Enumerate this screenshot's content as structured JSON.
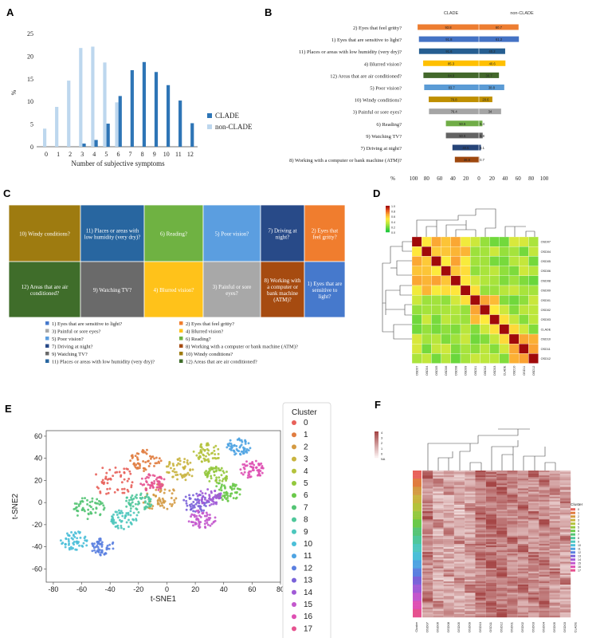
{
  "panel_labels": [
    "A",
    "B",
    "C",
    "D",
    "E",
    "F"
  ],
  "chart_data": [
    {
      "id": "A",
      "type": "bar",
      "xlabel": "Number of subjective symptoms",
      "ylabel": "%",
      "ylim": [
        0,
        25
      ],
      "yticks": [
        0,
        5,
        10,
        15,
        20,
        25
      ],
      "categories": [
        "0",
        "1",
        "2",
        "3",
        "4",
        "5",
        "6",
        "7",
        "8",
        "9",
        "10",
        "11",
        "12"
      ],
      "series": [
        {
          "name": "CLADE",
          "color": "#2e75b6",
          "values": [
            0,
            0,
            0,
            0.7,
            1.5,
            5.1,
            11.2,
            16.9,
            18.7,
            16.5,
            13.6,
            10.2,
            5.2
          ]
        },
        {
          "name": "non-CLADE",
          "color": "#bdd7ee",
          "values": [
            4.0,
            8.8,
            14.6,
            21.8,
            22.1,
            18.6,
            9.8,
            0,
            0,
            0,
            0,
            0,
            0
          ]
        }
      ],
      "legend": "right"
    },
    {
      "id": "B",
      "type": "bar",
      "orientation": "horizontal-diverging",
      "group_labels": [
        "CLADE",
        "non-CLADE"
      ],
      "axis_prefix": "%",
      "xticks": [
        "100",
        "80",
        "60",
        "40",
        "20",
        "0",
        "20",
        "40",
        "60",
        "80",
        "100"
      ],
      "xlim": [
        -100,
        100
      ],
      "categories": [
        "2) Eyes that feel gritty?",
        "1) Eyes that are sensitive to light?",
        "11) Places or areas with low humidity (very dry)?",
        "4) Blurred vision?",
        "12) Areas that are air conditioned?",
        "5) Poor vision?",
        "10) Windy conditions?",
        "3) Painful or sore eyes?",
        "6) Reading?",
        "9) Watching TV?",
        "7) Driving at night?",
        "8) Working with a computer or bank machine (ATM)?"
      ],
      "clade": [
        93.8,
        91.8,
        91.6,
        85.3,
        84.9,
        83.7,
        76.8,
        76.4,
        50.5,
        50.5,
        40.5,
        36.8
      ],
      "nonclade": [
        60.7,
        61.2,
        40.2,
        40.6,
        30.7,
        38.8,
        20.6,
        34.0,
        5.4,
        5.8,
        3.1,
        0.7
      ],
      "value_labels_clade": [
        "93.8",
        "91.8",
        "91.6",
        "85.3",
        "84.9",
        "83.7",
        "76.8",
        "76.4",
        "50.5",
        "50.5",
        "40.5",
        "36.8"
      ],
      "value_labels_nonclade": [
        "60.7",
        "61.2",
        "40.2",
        "40.6",
        "30.7",
        "38.8",
        "20.6",
        "34",
        "5.4",
        "5.8",
        "3.1",
        "0.7"
      ],
      "colors": [
        "#ed7d31",
        "#4472c4",
        "#255e91",
        "#ffc000",
        "#43682b",
        "#5b9bd5",
        "#bf8f00",
        "#a5a5a5",
        "#70ad47",
        "#636363",
        "#264478",
        "#9e480e"
      ]
    },
    {
      "id": "C",
      "type": "treemap",
      "tiles": [
        {
          "label": "10) Windy conditions?",
          "color": "#9e7b10"
        },
        {
          "label": "11) Places or areas with low humidity (very dry)?",
          "color": "#2866a0"
        },
        {
          "label": "6) Reading?",
          "color": "#6fb242"
        },
        {
          "label": "5) Poor vision?",
          "color": "#5b9ee0"
        },
        {
          "label": "7) Driving at night?",
          "color": "#284a88"
        },
        {
          "label": "2) Eyes that feel gritty?",
          "color": "#f07d2e"
        },
        {
          "label": "12) Areas that are air conditioned?",
          "color": "#3f6d2a"
        },
        {
          "label": "9) Watching TV?",
          "color": "#6a6a6a"
        },
        {
          "label": "4) Blurred vision?",
          "color": "#ffc21a"
        },
        {
          "label": "3) Painful or sore eyes?",
          "color": "#a8a8a8"
        },
        {
          "label": "8) Working with a computer or bank machine (ATM)?",
          "color": "#a64b10"
        },
        {
          "label": "1) Eyes that are sensitive to light?",
          "color": "#4679cc"
        }
      ],
      "legend": [
        {
          "label": "1) Eyes that are sensitive to light?",
          "color": "#4679cc"
        },
        {
          "label": "2) Eyes that feel gritty?",
          "color": "#f07d2e"
        },
        {
          "label": "3) Painful or sore eyes?",
          "color": "#a8a8a8"
        },
        {
          "label": "4) Blurred vision?",
          "color": "#ffc21a"
        },
        {
          "label": "5) Poor vision?",
          "color": "#5b9ee0"
        },
        {
          "label": "6) Reading?",
          "color": "#6fb242"
        },
        {
          "label": "7) Driving at night?",
          "color": "#284a88"
        },
        {
          "label": "8) Working with a computer or bank machine (ATM)?",
          "color": "#a64b10"
        },
        {
          "label": "9) Watching  TV?",
          "color": "#6a6a6a"
        },
        {
          "label": "10) Windy conditions?",
          "color": "#9e7b10"
        },
        {
          "label": "11) Places or areas with low humidity (very dry)?",
          "color": "#2866a0"
        },
        {
          "label": "12) Areas that are air conditioned?",
          "color": "#3f6d2a"
        }
      ]
    },
    {
      "id": "D",
      "type": "heatmap",
      "labels": [
        "OSD07",
        "OSD04",
        "OSD05",
        "OSD06",
        "OSD08",
        "OSD09",
        "OSD01",
        "OSD02",
        "OSD03",
        "CLADE",
        "OSD10",
        "OSD11",
        "OSD12"
      ],
      "colorbar_ticks": [
        "1.0",
        "0.8",
        "0.6",
        "0.4",
        "0.2",
        "0.0"
      ],
      "colorscale": "green-yellow-orange-red"
    },
    {
      "id": "E",
      "type": "scatter",
      "xlabel": "t-SNE1",
      "ylabel": "t-SNE2",
      "xlim": [
        -85,
        80
      ],
      "ylim": [
        -72,
        65
      ],
      "xticks": [
        "-80",
        "-60",
        "-40",
        "-20",
        "0",
        "20",
        "40",
        "60",
        "80"
      ],
      "yticks": [
        "60",
        "40",
        "20",
        "0",
        "-20",
        "-40",
        "-60"
      ],
      "legend_title": "Cluster",
      "clusters": [
        "0",
        "1",
        "2",
        "3",
        "4",
        "5",
        "6",
        "7",
        "8",
        "9",
        "10",
        "11",
        "12",
        "13",
        "14",
        "15",
        "16",
        "17"
      ],
      "cluster_colors": [
        "#e8615a",
        "#e07c3f",
        "#d49a42",
        "#c9b43f",
        "#b4c23c",
        "#93c83d",
        "#6ac94a",
        "#54c474",
        "#4fc79b",
        "#4cc7bd",
        "#4bbfd8",
        "#4ea3e2",
        "#5a7fe0",
        "#7a62d9",
        "#a05ad6",
        "#c357cd",
        "#de4fb3",
        "#e65390"
      ],
      "cluster_centers": [
        [
          -38,
          20
        ],
        [
          -15,
          38
        ],
        [
          -5,
          5
        ],
        [
          10,
          30
        ],
        [
          28,
          45
        ],
        [
          35,
          25
        ],
        [
          42,
          10
        ],
        [
          -55,
          -5
        ],
        [
          -20,
          0
        ],
        [
          -30,
          -15
        ],
        [
          -65,
          -35
        ],
        [
          50,
          50
        ],
        [
          -45,
          -40
        ],
        [
          20,
          0
        ],
        [
          30,
          5
        ],
        [
          25,
          -15
        ],
        [
          60,
          30
        ],
        [
          -10,
          18
        ]
      ]
    },
    {
      "id": "F",
      "type": "heatmap",
      "colorbar_ticks": [
        "4",
        "3",
        "2",
        "1",
        "0",
        "NA"
      ],
      "legend_title": "Cluster",
      "clusters": [
        "0",
        "1",
        "2",
        "3",
        "4",
        "5",
        "6",
        "7",
        "8",
        "9",
        "10",
        "11",
        "12",
        "13",
        "14",
        "15",
        "16",
        "17"
      ],
      "cluster_colors": [
        "#e8615a",
        "#e07c3f",
        "#d49a42",
        "#c9b43f",
        "#b4c23c",
        "#93c83d",
        "#6ac94a",
        "#54c474",
        "#4fc79b",
        "#4cc7bd",
        "#4bbfd8",
        "#4ea3e2",
        "#5a7fe0",
        "#7a62d9",
        "#a05ad6",
        "#c357cd",
        "#de4fb3",
        "#e65390"
      ],
      "column_labels": [
        "Cluster",
        "OSD07",
        "OSD06",
        "OSD08",
        "OSD05",
        "OSD09",
        "OSD10",
        "OSD11",
        "OSD12",
        "OSD01",
        "OSD02",
        "OSD03",
        "OSD04",
        "OSD05",
        "OSD03",
        "CLADE"
      ]
    }
  ]
}
